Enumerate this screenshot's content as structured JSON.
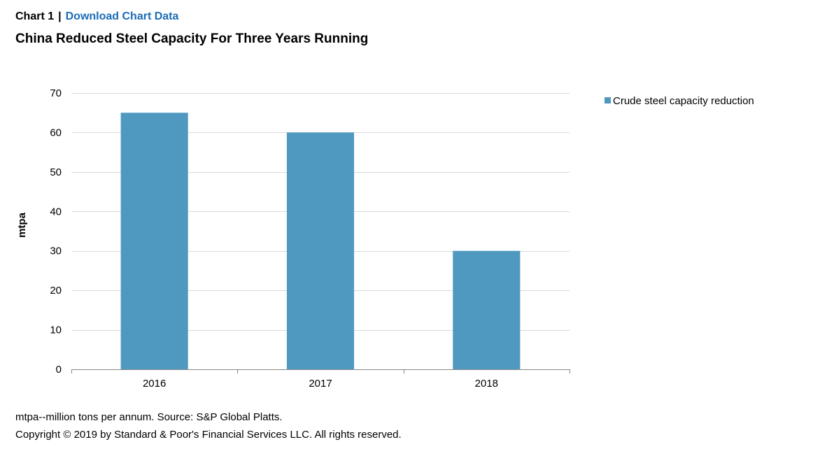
{
  "header": {
    "chart_label": "Chart 1",
    "separator": "|",
    "download_link": "Download Chart Data"
  },
  "title": "China Reduced Steel Capacity For Three Years Running",
  "colors": {
    "bar": "#4f99c1",
    "link": "#1b6cb6",
    "grid": "#d9d9d9",
    "axis": "#868686"
  },
  "chart_data": {
    "type": "bar",
    "categories": [
      "2016",
      "2017",
      "2018"
    ],
    "series": [
      {
        "name": "Crude steel capacity reduction",
        "values": [
          65,
          60,
          30
        ]
      }
    ],
    "title": "China Reduced Steel Capacity For Three Years Running",
    "xlabel": "",
    "ylabel": "mtpa",
    "ylim": [
      0,
      70
    ],
    "yticks": [
      0,
      10,
      20,
      30,
      40,
      50,
      60,
      70
    ],
    "grid": true,
    "legend_position": "top-right"
  },
  "footer": {
    "note": "mtpa--million tons per annum. Source: S&P Global Platts.",
    "copyright": "Copyright © 2019 by Standard & Poor's Financial Services LLC. All rights reserved."
  }
}
